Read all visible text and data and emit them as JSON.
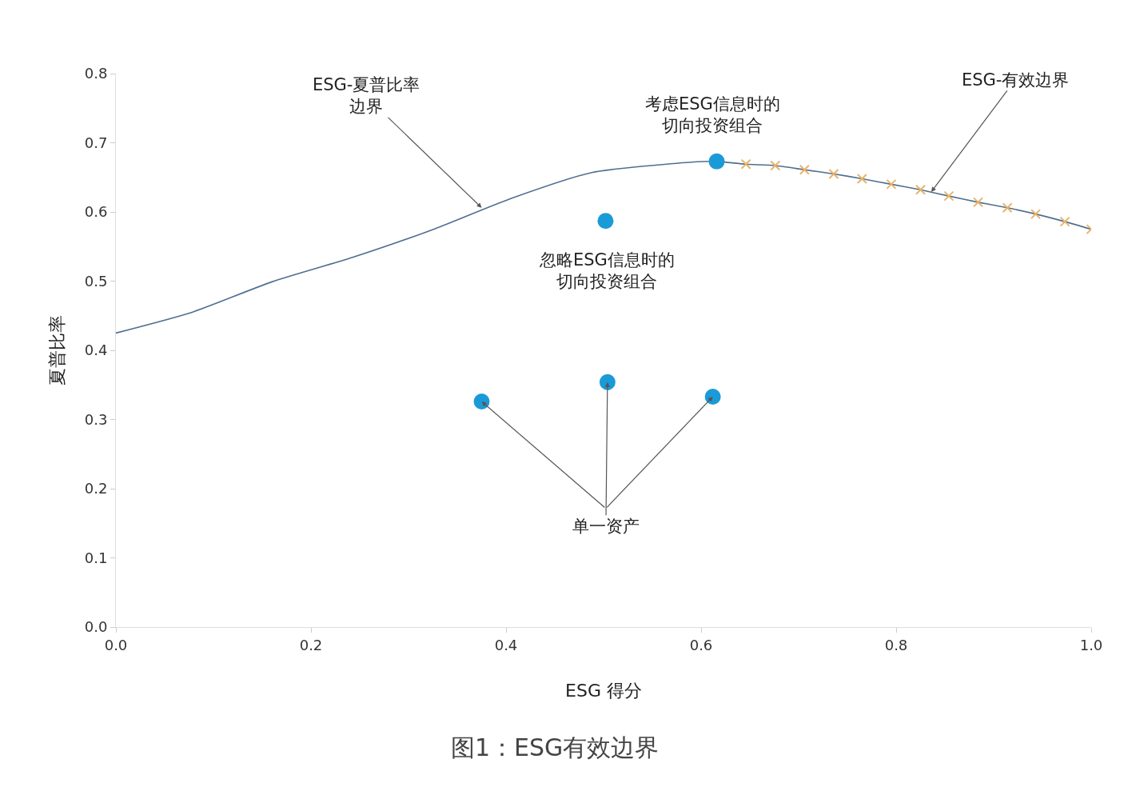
{
  "chart_data": {
    "type": "line",
    "xlabel": "ESG 得分",
    "ylabel": "夏普比率",
    "xlim": [
      0,
      1
    ],
    "ylim": [
      0,
      0.8
    ],
    "xticks": [
      {
        "value": 0,
        "label": "0.0"
      },
      0.2,
      0.4,
      0.6,
      0.8,
      {
        "value": 1,
        "label": "1.0"
      }
    ],
    "yticks": [
      {
        "value": 0,
        "label": "0.0"
      },
      0.1,
      0.2,
      0.3,
      0.4,
      0.5,
      0.6,
      0.7,
      0.8
    ],
    "series": [
      {
        "marker": "none",
        "line_style": "solid",
        "color": "#4f6f8f",
        "x": [
          0,
          0.078,
          0.16,
          0.242,
          0.324,
          0.406,
          0.488,
          0.59,
          0.616,
          0.646,
          0.676,
          0.706,
          0.736,
          0.765,
          0.795,
          0.825,
          0.854,
          0.884,
          0.914,
          0.943,
          0.973,
          1.0
        ],
        "values": [
          0.425,
          0.455,
          0.499,
          0.534,
          0.574,
          0.62,
          0.657,
          0.672,
          0.673,
          0.669,
          0.667,
          0.661,
          0.655,
          0.648,
          0.64,
          0.632,
          0.623,
          0.614,
          0.606,
          0.597,
          0.586,
          0.575
        ]
      },
      {
        "type": "scatter",
        "marker": "cross",
        "color": "#e7b46a",
        "x": [
          0.646,
          0.676,
          0.706,
          0.736,
          0.765,
          0.795,
          0.825,
          0.854,
          0.884,
          0.914,
          0.943,
          0.973,
          1.0
        ],
        "values": [
          0.669,
          0.667,
          0.661,
          0.655,
          0.648,
          0.64,
          0.632,
          0.623,
          0.614,
          0.606,
          0.597,
          0.586,
          0.575
        ]
      },
      {
        "type": "scatter",
        "marker": "circle",
        "color": "#1a9bd7",
        "x": [
          0.616,
          0.502
        ],
        "values": [
          0.673,
          0.587
        ]
      },
      {
        "type": "scatter",
        "marker": "circle",
        "color": "#1a9bd7",
        "x": [
          0.375,
          0.504,
          0.612
        ],
        "values": [
          0.326,
          0.354,
          0.333
        ]
      }
    ],
    "annotations": [
      {
        "text": "ESG-夏普比率边界",
        "x": 0.375,
        "y": 0.606
      },
      {
        "text": "ESG-有效边界",
        "x": 0.836,
        "y": 0.629
      },
      {
        "text": "考虑ESG信息时的切向投资组合",
        "x": 0.616,
        "y": 0.673
      },
      {
        "text": "忽略ESG信息时的切向投资组合",
        "x": 0.502,
        "y": 0.587
      },
      {
        "text": "单一资产",
        "x": 0.504,
        "y": 0.354
      },
      "图1：ESG有效边界"
    ]
  }
}
